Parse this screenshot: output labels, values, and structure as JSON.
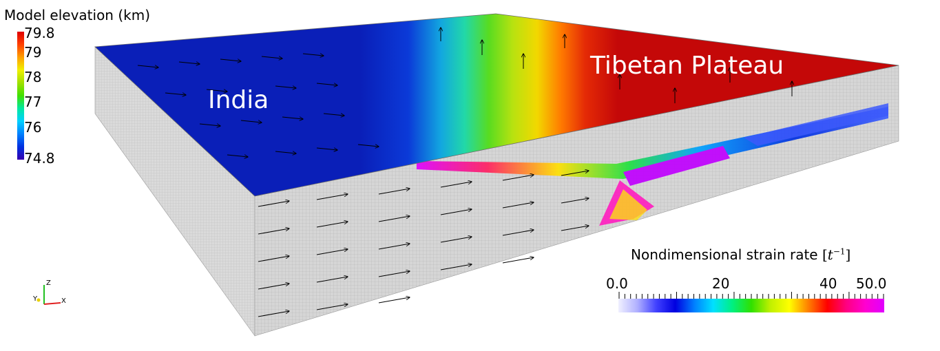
{
  "elevation_legend": {
    "title": "Model elevation (km)",
    "ticks": [
      "79.8",
      "79",
      "78",
      "77",
      "76",
      "74.8"
    ],
    "colormap": [
      "#3500b0",
      "#0030e0",
      "#0080ff",
      "#00d0ff",
      "#00e8a0",
      "#40e000",
      "#a0e000",
      "#f0f000",
      "#ffa000",
      "#ff4000",
      "#e00000"
    ]
  },
  "strain_legend": {
    "title": "Nondimensional strain rate",
    "unit_base": "t",
    "unit_exp": "−1",
    "ticks": [
      "0.0",
      "20",
      "40",
      "50.0"
    ],
    "colormap": [
      "#f0f0ff",
      "#b0b0ff",
      "#4040ff",
      "#0000e0",
      "#0080ff",
      "#00e0ff",
      "#00f080",
      "#30e000",
      "#c0f000",
      "#ffff00",
      "#ff8000",
      "#ff0000",
      "#ff0080",
      "#ff00d0",
      "#e000ff"
    ]
  },
  "regions": {
    "india": "India",
    "tibet": "Tibetan Plateau"
  },
  "axes": {
    "z": "Z",
    "y": "Y",
    "x": "X"
  },
  "colors": {
    "india_blue": "#0a1fb8",
    "plateau_red": "#c40808",
    "side_gray": "#d4d4d4"
  }
}
